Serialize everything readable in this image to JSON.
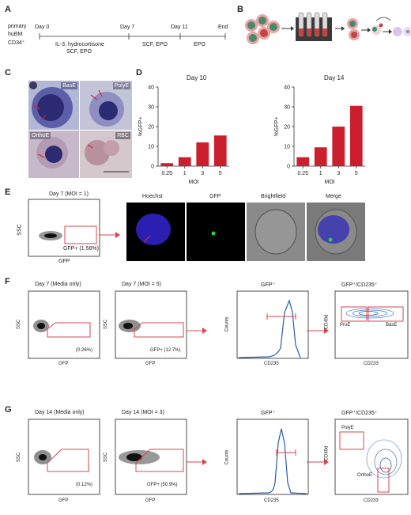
{
  "panels": {
    "A": "A",
    "B": "B",
    "C": "C",
    "D": "D",
    "E": "E",
    "F": "F",
    "G": "G"
  },
  "timeline": {
    "source": [
      "primary",
      "huBM",
      "CD34⁺"
    ],
    "days": [
      "Day 0",
      "Day 7",
      "Day 11",
      "End"
    ],
    "segments": [
      "IL-3, hydrocortisone",
      "SCF, EPO",
      "SCF, EPO",
      "EPO"
    ]
  },
  "micrographs": [
    "BasE",
    "PolyE",
    "OrthoE",
    "RBC"
  ],
  "chart_data": [
    {
      "type": "bar",
      "title": "Day 10",
      "categories": [
        "0.25",
        "1",
        "3",
        "5"
      ],
      "values": [
        1.5,
        4.5,
        12,
        15.5
      ],
      "xlabel": "MOI",
      "ylabel": "%GFP+",
      "ylim": [
        0,
        40
      ],
      "yticks": [
        0,
        10,
        20,
        30,
        40
      ],
      "color": "#cc1f2d"
    },
    {
      "type": "bar",
      "title": "Day 14",
      "categories": [
        "0.25",
        "1",
        "3",
        "5"
      ],
      "values": [
        4.5,
        9.5,
        20,
        30.5
      ],
      "xlabel": "MOI",
      "ylabel": "%GFP+",
      "ylim": [
        0,
        40
      ],
      "yticks": [
        0,
        10,
        20,
        30,
        40
      ],
      "color": "#cc1f2d"
    }
  ],
  "panelE": {
    "plot_title": "Day 7 (MOI = 1)",
    "x": "GFP",
    "y": "SSC",
    "gate": "GFP+ (1.58%)",
    "images": [
      "Hoechst",
      "GFP",
      "Brightfield",
      "Merge"
    ]
  },
  "panelF": {
    "p1_title": "Day 7 (Media only)",
    "p1_gate": "(0.26%)",
    "p2_title": "Day 7 (MOI = 5)",
    "p2_gate": "GFP+ (12.7%)",
    "hist_title": "GFP⁺",
    "hist_x": "CD235",
    "hist_y": "Counts",
    "contour_title": "GFP⁺/CD235⁺",
    "contour_x": "CD233",
    "contour_y": "CD49d",
    "g1": "ProE",
    "g2": "BasE",
    "x": "GFP",
    "y": "SSC"
  },
  "panelG": {
    "p1_title": "Day 14 (Media only)",
    "p1_gate": "(0.12%)",
    "p2_title": "Day 14 (MOI = 3)",
    "p2_gate": "GFP+ (50.9%)",
    "hist_title": "GFP⁺",
    "hist_x": "CD235",
    "hist_y": "Counts",
    "contour_title": "GFP⁺/CD235⁺",
    "contour_x": "CD233",
    "contour_y": "CD49d",
    "g1": "PolyE",
    "g2": "OrthoE",
    "x": "GFP",
    "y": "SSC"
  },
  "colors": {
    "red": "#cc1f2d",
    "blue": "#2a5caa",
    "gate": "#d9464f"
  }
}
